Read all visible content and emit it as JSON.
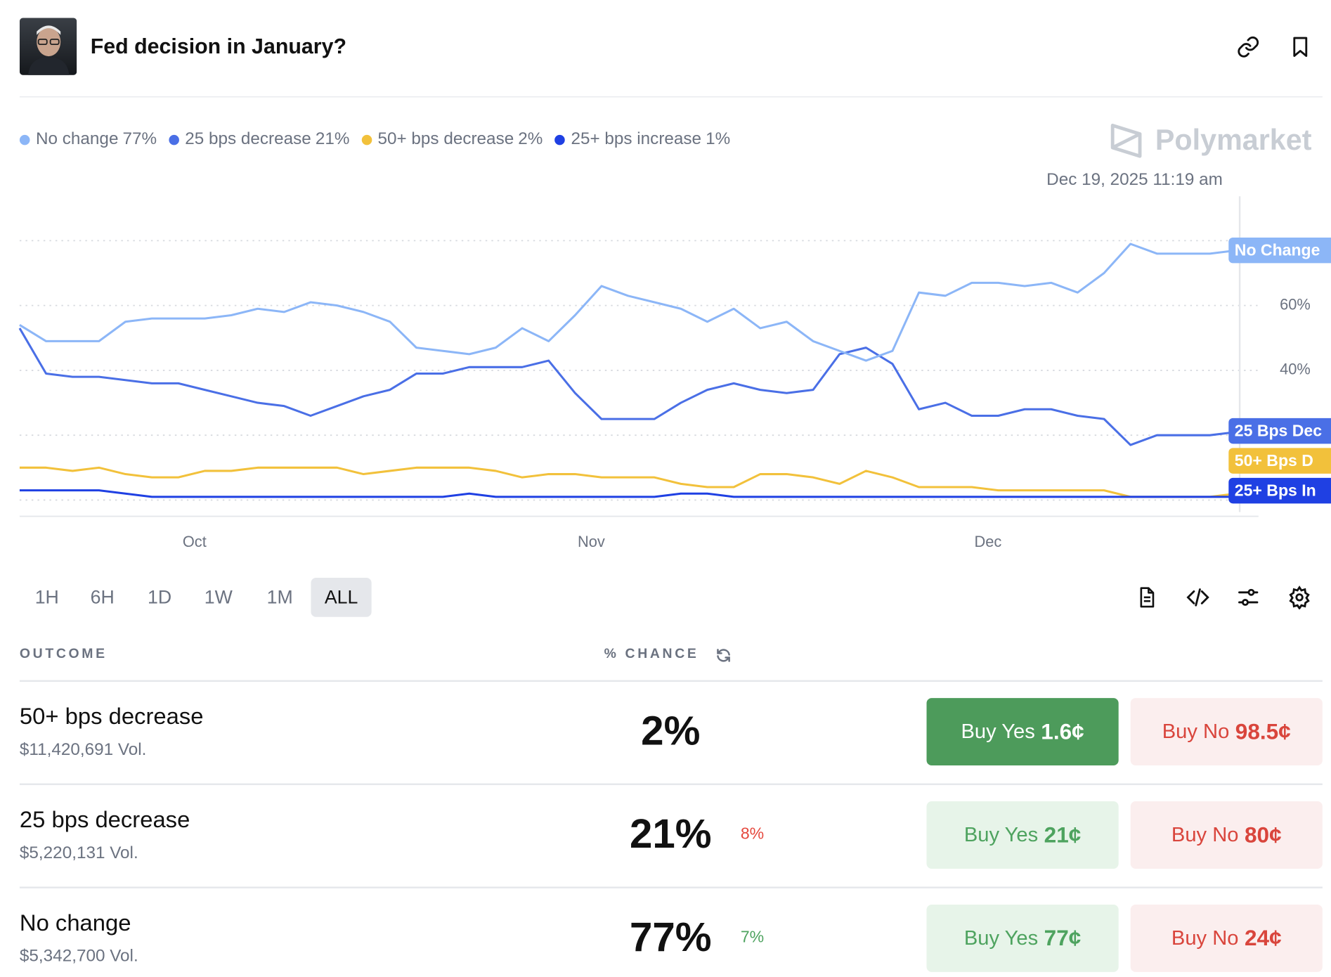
{
  "header": {
    "title": "Fed decision in January?"
  },
  "brand": "Polymarket",
  "timestamp": "Dec 19, 2025 11:19 am",
  "chart_data": {
    "type": "line",
    "categories": [
      null,
      null,
      null,
      null,
      null,
      null,
      null,
      "Oct",
      null,
      null,
      null,
      null,
      null,
      null,
      null,
      null,
      null,
      null,
      null,
      null,
      null,
      null,
      "Nov",
      null,
      null,
      null,
      null,
      null,
      null,
      null,
      null,
      null,
      null,
      null,
      null,
      null,
      null,
      "Dec",
      null,
      null,
      null,
      null,
      null,
      null,
      null,
      null,
      null
    ],
    "series": [
      {
        "name": "No change",
        "legend_value": "77%",
        "end_label": "No Change",
        "color": "#8cb6f7",
        "values": [
          54,
          49,
          49,
          49,
          55,
          56,
          56,
          56,
          57,
          59,
          58,
          61,
          60,
          58,
          55,
          47,
          46,
          45,
          47,
          53,
          49,
          57,
          66,
          63,
          61,
          59,
          55,
          59,
          53,
          55,
          49,
          46,
          43,
          46,
          64,
          63,
          67,
          67,
          66,
          67,
          64,
          70,
          79,
          76,
          76,
          76,
          77
        ]
      },
      {
        "name": "25 bps decrease",
        "legend_value": "21%",
        "end_label": "25 Bps Dec",
        "color": "#4a6fe6",
        "values": [
          53,
          39,
          38,
          38,
          37,
          36,
          36,
          34,
          32,
          30,
          29,
          26,
          29,
          32,
          34,
          39,
          39,
          41,
          41,
          41,
          43,
          33,
          25,
          25,
          25,
          30,
          34,
          36,
          34,
          33,
          34,
          45,
          47,
          42,
          28,
          30,
          26,
          26,
          28,
          28,
          26,
          25,
          17,
          20,
          20,
          20,
          21
        ]
      },
      {
        "name": "50+ bps decrease",
        "legend_value": "2%",
        "end_label": "50+ Bps D",
        "color": "#f2c13b",
        "values": [
          10,
          10,
          9,
          10,
          8,
          7,
          7,
          9,
          9,
          10,
          10,
          10,
          10,
          8,
          9,
          10,
          10,
          10,
          9,
          7,
          8,
          8,
          7,
          7,
          7,
          5,
          4,
          4,
          8,
          8,
          7,
          5,
          9,
          7,
          4,
          4,
          4,
          3,
          3,
          3,
          3,
          3,
          1,
          1,
          1,
          1,
          2
        ]
      },
      {
        "name": "25+ bps increase",
        "legend_value": "1%",
        "end_label": "25+ Bps In",
        "color": "#1f40e3",
        "values": [
          3,
          3,
          3,
          3,
          2,
          1,
          1,
          1,
          1,
          1,
          1,
          1,
          1,
          1,
          1,
          1,
          1,
          2,
          1,
          1,
          1,
          1,
          1,
          1,
          1,
          2,
          2,
          1,
          1,
          1,
          1,
          1,
          1,
          1,
          1,
          1,
          1,
          1,
          1,
          1,
          1,
          1,
          1,
          1,
          1,
          1,
          1
        ]
      }
    ],
    "ylim": [
      -5,
      100
    ],
    "yticks": [
      {
        "value": 40,
        "label": "40%"
      },
      {
        "value": 60,
        "label": "60%"
      }
    ],
    "grid": [
      0,
      20,
      40,
      60,
      80
    ]
  },
  "time_ranges": [
    "1H",
    "6H",
    "1D",
    "1W",
    "1M",
    "ALL"
  ],
  "selected_range": "ALL",
  "table": {
    "columns": [
      "OUTCOME",
      "% CHANCE"
    ],
    "rows": [
      {
        "name": "50+ bps decrease",
        "volume": "$11,420,691 Vol.",
        "chance": "2%",
        "buy_yes": {
          "label": "Buy Yes",
          "price": "1.6¢",
          "filled": true
        },
        "buy_no": {
          "label": "Buy No",
          "price": "98.5¢"
        }
      },
      {
        "name": "25 bps decrease",
        "volume": "$5,220,131 Vol.",
        "chance": "21%",
        "change": {
          "direction": "down",
          "label": "8%"
        },
        "buy_yes": {
          "label": "Buy Yes",
          "price": "21¢",
          "filled": false
        },
        "buy_no": {
          "label": "Buy No",
          "price": "80¢"
        }
      },
      {
        "name": "No change",
        "volume": "$5,342,700 Vol.",
        "chance": "77%",
        "change": {
          "direction": "up",
          "label": "7%"
        },
        "buy_yes": {
          "label": "Buy Yes",
          "price": "77¢",
          "filled": false
        },
        "buy_no": {
          "label": "Buy No",
          "price": "24¢"
        }
      }
    ]
  }
}
